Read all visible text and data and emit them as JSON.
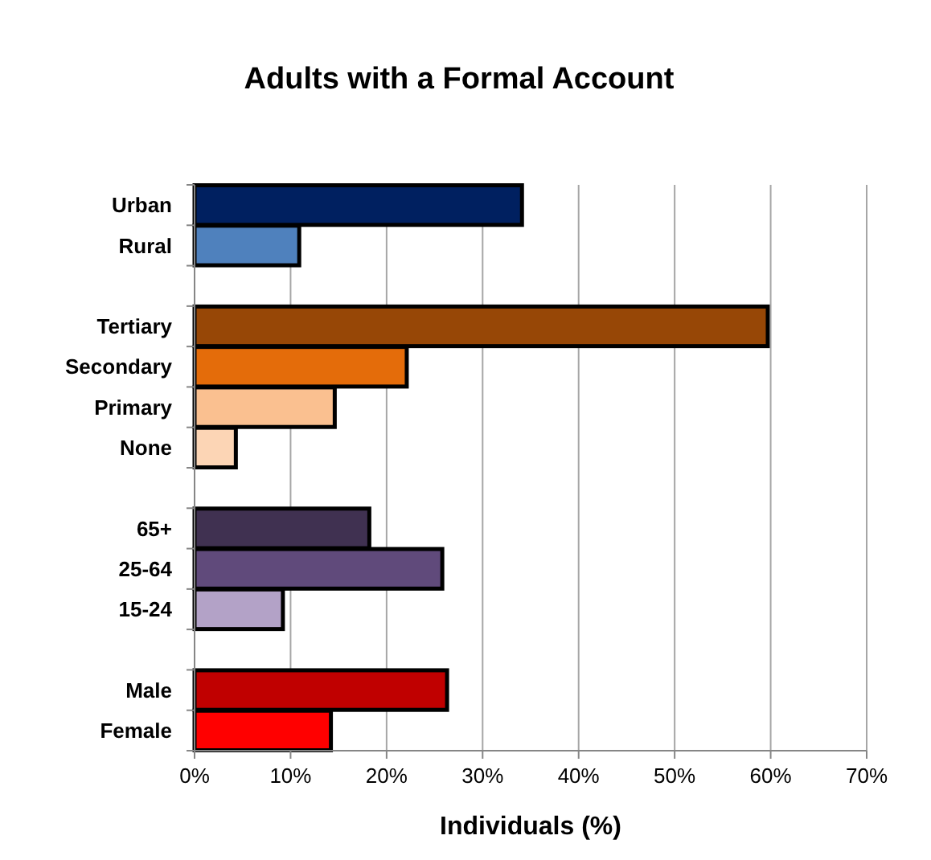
{
  "chart_data": {
    "type": "bar",
    "orientation": "horizontal",
    "title": "Adults with a Formal Account",
    "xlabel": "Individuals (%)",
    "categories": [
      "Urban",
      "Rural",
      null,
      "Tertiary",
      "Secondary",
      "Primary",
      "None",
      null,
      "65+",
      "25-64",
      "15-24",
      null,
      "Male",
      "Female"
    ],
    "values": [
      34.1,
      10.9,
      null,
      59.7,
      22.1,
      14.6,
      4.3,
      null,
      18.2,
      25.8,
      9.2,
      null,
      26.3,
      14.2
    ],
    "colors": [
      "#002060",
      "#4f81bd",
      null,
      "#974706",
      "#e46c0a",
      "#fac090",
      "#fcd5b5",
      null,
      "#403151",
      "#604a7b",
      "#b3a2c7",
      null,
      "#c00000",
      "#ff0000"
    ],
    "xlim": [
      0,
      70
    ],
    "xticks": [
      {
        "value": 0,
        "label": "0%"
      },
      {
        "value": 10,
        "label": "10%"
      },
      {
        "value": 20,
        "label": "20%"
      },
      {
        "value": 30,
        "label": "30%"
      },
      {
        "value": 40,
        "label": "40%"
      },
      {
        "value": 50,
        "label": "50%"
      },
      {
        "value": 60,
        "label": "60%"
      },
      {
        "value": 70,
        "label": "70%"
      }
    ],
    "grid": "x"
  }
}
